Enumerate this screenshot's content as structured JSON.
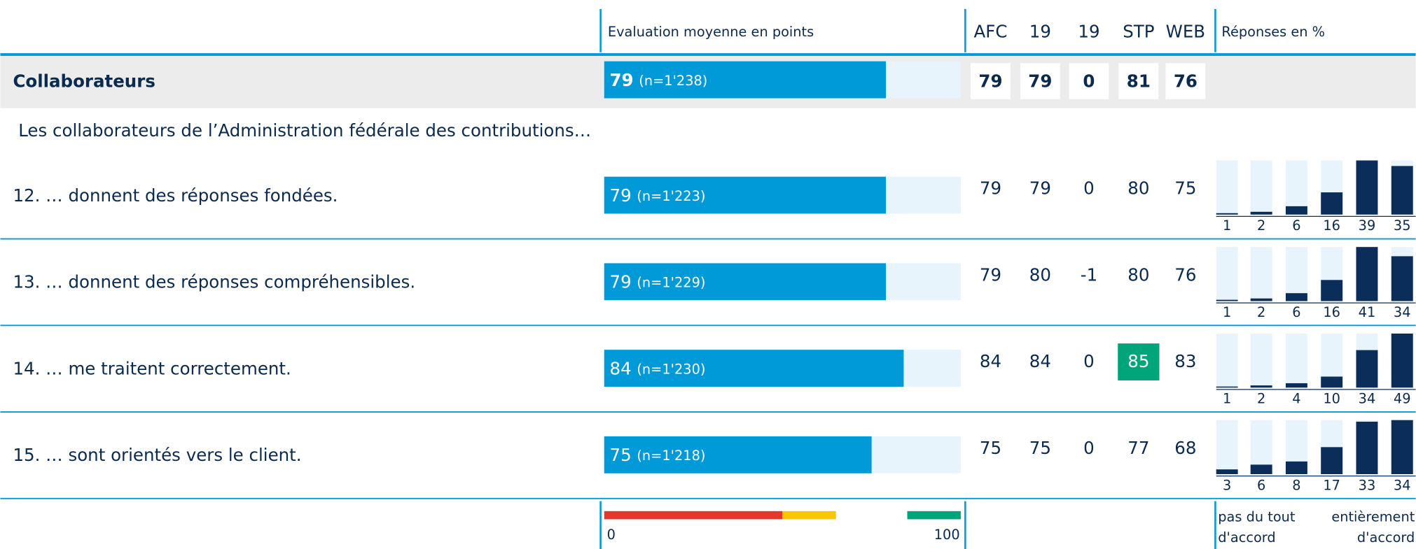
{
  "header": {
    "score_label": "Evaluation moyenne en points",
    "columns": [
      "AFC",
      "19",
      "19",
      "STP",
      "WEB"
    ],
    "distribution_label": "Réponses en %"
  },
  "summary": {
    "label": "Collaborateurs",
    "score": 79,
    "n": "(n=1'238)",
    "columns": [
      79,
      79,
      0,
      81,
      76
    ]
  },
  "intro": "Les collaborateurs de l’Administration fédérale des contributions…",
  "rows": [
    {
      "label": "12. … donnent des réponses fondées.",
      "score": 79,
      "n": "(n=1'223)",
      "columns": [
        79,
        79,
        0,
        80,
        75
      ],
      "distribution": [
        1,
        2,
        6,
        16,
        39,
        35
      ]
    },
    {
      "label": "13. … donnent des réponses compréhensibles.",
      "score": 79,
      "n": "(n=1'229)",
      "columns": [
        79,
        80,
        -1,
        80,
        76
      ],
      "distribution": [
        1,
        2,
        6,
        16,
        41,
        34
      ]
    },
    {
      "label": "14. … me traitent correctement.",
      "score": 84,
      "n": "(n=1'230)",
      "columns": [
        84,
        84,
        0,
        85,
        83
      ],
      "distribution": [
        1,
        2,
        4,
        10,
        34,
        49
      ],
      "highlight": 3
    },
    {
      "label": "15. … sont orientés vers le client.",
      "score": 75,
      "n": "(n=1'218)",
      "columns": [
        75,
        75,
        0,
        77,
        68
      ],
      "distribution": [
        3,
        6,
        8,
        17,
        33,
        34
      ]
    }
  ],
  "scale": {
    "min": 0,
    "max": 100,
    "bands": [
      {
        "from": 0,
        "to": 50,
        "color": "#e2372a"
      },
      {
        "from": 50,
        "to": 65,
        "color": "#f7c600"
      },
      {
        "from": 85,
        "to": 100,
        "color": "#00a57a"
      }
    ]
  },
  "colors": {
    "bar": "#009ad8",
    "bar_track": "#e8f4fb",
    "dist": "#0a2d5a",
    "highlight": "#00a57a"
  },
  "footer": {
    "left": [
      "pas du tout",
      "d'accord"
    ],
    "right": [
      "entièrement",
      "d'accord"
    ]
  }
}
